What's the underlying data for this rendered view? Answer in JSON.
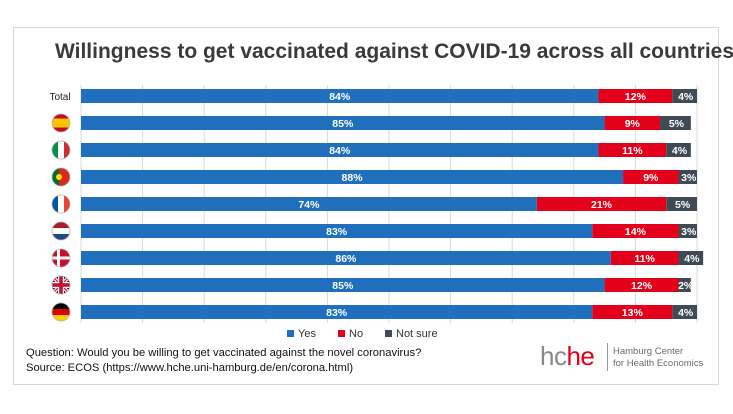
{
  "title": "Willingness to get vaccinated against COVID-19 across all countries",
  "footer": {
    "question": "Question: Would you be willing to get vaccinated against the novel coronavirus?",
    "source": "Source: ECOS (https://www.hche.uni-hamburg.de/en/corona.html)"
  },
  "logo": {
    "mark_part1": "hc",
    "mark_part2": "he",
    "line1": "Hamburg Center",
    "line2": "for Health Economics"
  },
  "colors": {
    "yes": "#1f6fbd",
    "no": "#e3001b",
    "not_sure": "#3f4a55"
  },
  "chart_data": {
    "type": "bar",
    "orientation": "horizontal",
    "stacked": true,
    "normalized": true,
    "categories": [
      "Total",
      "Spain",
      "Italy",
      "Portugal",
      "France",
      "Netherlands",
      "Denmark",
      "United Kingdom",
      "Germany"
    ],
    "category_labels": [
      "Total",
      "",
      "",
      "",
      "",
      "",
      "",
      "",
      ""
    ],
    "category_icons": [
      "",
      "flag-spain-icon",
      "flag-italy-icon",
      "flag-portugal-icon",
      "flag-france-icon",
      "flag-netherlands-icon",
      "flag-denmark-icon",
      "flag-uk-icon",
      "flag-germany-icon"
    ],
    "series": [
      {
        "name": "Yes",
        "values": [
          84,
          85,
          84,
          88,
          74,
          83,
          86,
          85,
          83
        ],
        "labels": [
          "84%",
          "85%",
          "84%",
          "88%",
          "74%",
          "83%",
          "86%",
          "85%",
          "83%"
        ]
      },
      {
        "name": "No",
        "values": [
          12,
          9,
          11,
          9,
          21,
          14,
          11,
          12,
          13
        ],
        "labels": [
          "12%",
          "9%",
          "11%",
          "9%",
          "21%",
          "14%",
          "11%",
          "12%",
          "13%"
        ]
      },
      {
        "name": "Not sure",
        "values": [
          4,
          5,
          4,
          3,
          5,
          3,
          4,
          2,
          4
        ],
        "labels": [
          "4%",
          "5%",
          "4%",
          "3%",
          "5%",
          "3%",
          "4%",
          "2%",
          "4%"
        ]
      }
    ],
    "xlim": [
      0,
      100
    ],
    "grid": true,
    "legend_position": "bottom-center"
  }
}
